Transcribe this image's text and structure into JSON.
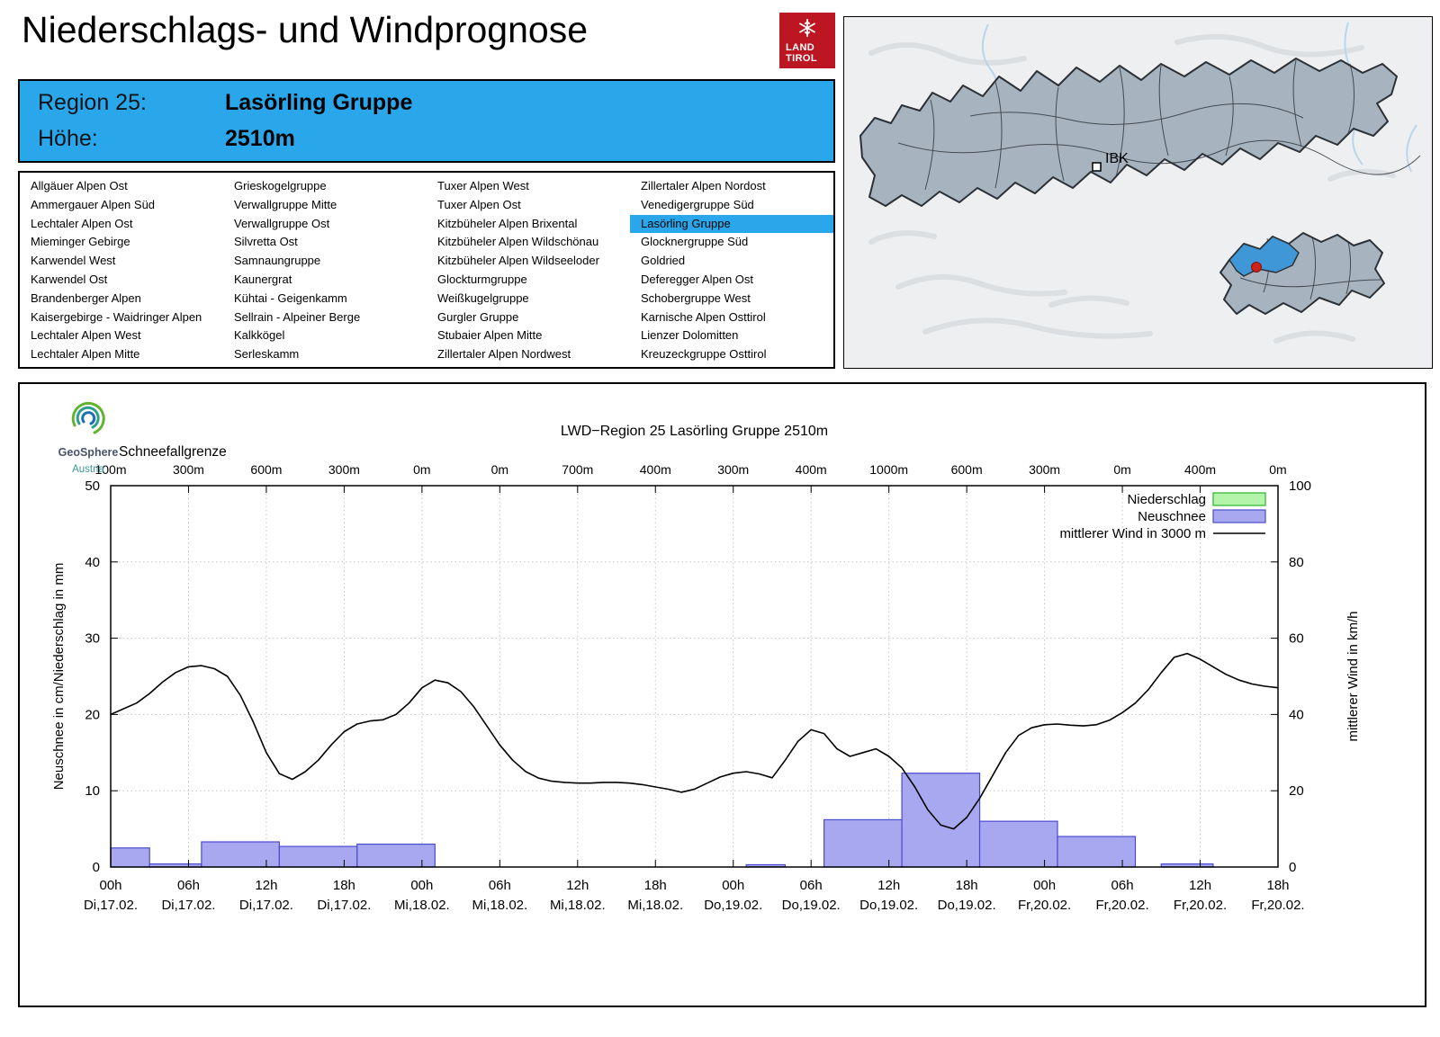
{
  "page": {
    "title": "Niederschlags- und Windprognose"
  },
  "tirol_logo": {
    "line1": "LAND",
    "line2": "TIROL"
  },
  "region_banner": {
    "region_label": "Region 25:",
    "region_value": "Lasörling Gruppe",
    "altitude_label": "Höhe:",
    "altitude_value": "2510m"
  },
  "region_list": {
    "selected": "Lasörling Gruppe",
    "columns": [
      [
        "Allgäuer Alpen Ost",
        "Ammergauer Alpen Süd",
        "Lechtaler Alpen Ost",
        "Mieminger Gebirge",
        "Karwendel West",
        "Karwendel Ost",
        "Brandenberger Alpen",
        "Kaisergebirge - Waidringer Alpen",
        "Lechtaler Alpen West",
        "Lechtaler Alpen Mitte"
      ],
      [
        "Grieskogelgruppe",
        "Verwallgruppe Mitte",
        "Verwallgruppe Ost",
        "Silvretta Ost",
        "Samnaungruppe",
        "Kaunergrat",
        "Kühtai - Geigenkamm",
        "Sellrain - Alpeiner Berge",
        "Kalkkögel",
        "Serleskamm"
      ],
      [
        "Tuxer Alpen West",
        "Tuxer Alpen Ost",
        "Kitzbüheler Alpen Brixental",
        "Kitzbüheler Alpen Wildschönau",
        "Kitzbüheler Alpen Wildseeloder",
        "Glockturmgruppe",
        "Weißkugelgruppe",
        "Gurgler Gruppe",
        "Stubaier Alpen Mitte",
        "Zillertaler Alpen Nordwest"
      ],
      [
        "Zillertaler Alpen Nordost",
        "Venedigergruppe Süd",
        "Lasörling Gruppe",
        "Glocknergruppe Süd",
        "Goldried",
        "Deferegger Alpen Ost",
        "Schobergruppe West",
        "Karnische Alpen Osttirol",
        "Lienzer Dolomitten",
        "Kreuzeckgruppe Osttirol"
      ]
    ]
  },
  "map": {
    "ibk_label": "IBK"
  },
  "geosphere_logo": {
    "line1": "GeoSphere",
    "line2": "Austria"
  },
  "colors": {
    "accent": "#2aa7eb",
    "tirol_red": "#bc1623",
    "map_fill": "#a7b3bf",
    "map_highlight": "#3f97d7",
    "marker_red": "#d02318"
  },
  "chart_data": {
    "type": "composite",
    "title": "LWD−Region 25 Lasörling Gruppe 2510m",
    "top_axis": {
      "label": "Schneefallgrenze",
      "values": [
        "100m",
        "300m",
        "600m",
        "300m",
        "0m",
        "0m",
        "700m",
        "400m",
        "300m",
        "400m",
        "1000m",
        "600m",
        "300m",
        "0m",
        "400m",
        "0m"
      ]
    },
    "x_axis": {
      "hours_range": [
        0,
        90
      ],
      "tick_step_h": 6,
      "tick_times": [
        "00h",
        "06h",
        "12h",
        "18h",
        "00h",
        "06h",
        "12h",
        "18h",
        "00h",
        "06h",
        "12h",
        "18h",
        "00h",
        "06h",
        "12h",
        "18h"
      ],
      "tick_dates": [
        "Di,17.02.",
        "Di,17.02.",
        "Di,17.02.",
        "Di,17.02.",
        "Mi,18.02.",
        "Mi,18.02.",
        "Mi,18.02.",
        "Mi,18.02.",
        "Do,19.02.",
        "Do,19.02.",
        "Do,19.02.",
        "Do,19.02.",
        "Fr,20.02.",
        "Fr,20.02.",
        "Fr,20.02.",
        "Fr,20.02."
      ]
    },
    "y_left": {
      "label": "Neuschnee in cm/Niederschlag in mm",
      "min": 0,
      "max": 50,
      "ticks": [
        0,
        10,
        20,
        30,
        40,
        50
      ]
    },
    "y_right": {
      "label": "mittlerer Wind in km/h",
      "min": 0,
      "max": 100,
      "ticks": [
        0,
        20,
        40,
        60,
        80,
        100
      ]
    },
    "legend": [
      {
        "label": "Niederschlag",
        "swatch": "box",
        "fill": "#b4f4aa",
        "stroke": "#28b428"
      },
      {
        "label": "Neuschnee",
        "swatch": "box",
        "fill": "#a8a8f0",
        "stroke": "#4a4ad0"
      },
      {
        "label": "mittlerer Wind in 3000 m",
        "swatch": "line",
        "stroke": "#000000"
      }
    ],
    "series": {
      "niederschlag_mm": {
        "type": "bar",
        "fill": "#b4f4aa",
        "stroke": "#28b428",
        "segments": []
      },
      "neuschnee_cm": {
        "type": "bar",
        "fill": "#a8a8f0",
        "stroke": "#4a4ad0",
        "segments": [
          [
            0,
            3,
            2.5
          ],
          [
            3,
            7,
            0.4
          ],
          [
            7,
            13,
            3.3
          ],
          [
            13,
            19,
            2.7
          ],
          [
            19,
            25,
            3.0
          ],
          [
            49,
            52,
            0.3
          ],
          [
            55,
            61,
            6.2
          ],
          [
            61,
            67,
            12.3
          ],
          [
            67,
            73,
            6.0
          ],
          [
            73,
            79,
            4.0
          ],
          [
            81,
            85,
            0.4
          ]
        ]
      },
      "wind_kmh_3000m": {
        "type": "line",
        "axis": "right",
        "stroke": "#000000",
        "points": [
          [
            0,
            40
          ],
          [
            1,
            41.5
          ],
          [
            2,
            43
          ],
          [
            3,
            45.5
          ],
          [
            4,
            48.5
          ],
          [
            5,
            51
          ],
          [
            6,
            52.5
          ],
          [
            7,
            52.8
          ],
          [
            8,
            52
          ],
          [
            9,
            50
          ],
          [
            10,
            45
          ],
          [
            11,
            38
          ],
          [
            12,
            30
          ],
          [
            13,
            24.5
          ],
          [
            14,
            23
          ],
          [
            15,
            25
          ],
          [
            16,
            28
          ],
          [
            17,
            32
          ],
          [
            18,
            35.5
          ],
          [
            19,
            37.5
          ],
          [
            20,
            38.3
          ],
          [
            21,
            38.6
          ],
          [
            22,
            40
          ],
          [
            23,
            43
          ],
          [
            24,
            47
          ],
          [
            25,
            49
          ],
          [
            26,
            48.3
          ],
          [
            27,
            46
          ],
          [
            28,
            42
          ],
          [
            29,
            37
          ],
          [
            30,
            32
          ],
          [
            31,
            28
          ],
          [
            32,
            25
          ],
          [
            33,
            23.3
          ],
          [
            34,
            22.5
          ],
          [
            35,
            22.2
          ],
          [
            36,
            22
          ],
          [
            37,
            22
          ],
          [
            38,
            22.2
          ],
          [
            39,
            22.2
          ],
          [
            40,
            22
          ],
          [
            41,
            21.6
          ],
          [
            42,
            21
          ],
          [
            43,
            20.4
          ],
          [
            44,
            19.6
          ],
          [
            45,
            20.4
          ],
          [
            46,
            22
          ],
          [
            47,
            23.6
          ],
          [
            48,
            24.6
          ],
          [
            49,
            25
          ],
          [
            50,
            24.4
          ],
          [
            51,
            23.4
          ],
          [
            52,
            28
          ],
          [
            53,
            33
          ],
          [
            54,
            36
          ],
          [
            55,
            35
          ],
          [
            56,
            31
          ],
          [
            57,
            29
          ],
          [
            58,
            30
          ],
          [
            59,
            31
          ],
          [
            60,
            29
          ],
          [
            61,
            26
          ],
          [
            62,
            21
          ],
          [
            63,
            15
          ],
          [
            64,
            11
          ],
          [
            65,
            10
          ],
          [
            66,
            13
          ],
          [
            67,
            18
          ],
          [
            68,
            24
          ],
          [
            69,
            30
          ],
          [
            70,
            34.5
          ],
          [
            71,
            36.5
          ],
          [
            72,
            37.3
          ],
          [
            73,
            37.5
          ],
          [
            74,
            37.2
          ],
          [
            75,
            37
          ],
          [
            76,
            37.3
          ],
          [
            77,
            38.5
          ],
          [
            78,
            40.5
          ],
          [
            79,
            43
          ],
          [
            80,
            46.5
          ],
          [
            81,
            51
          ],
          [
            82,
            55
          ],
          [
            83,
            56
          ],
          [
            84,
            54.5
          ],
          [
            85,
            52.5
          ],
          [
            86,
            50.5
          ],
          [
            87,
            49
          ],
          [
            88,
            48
          ],
          [
            89,
            47.4
          ],
          [
            90,
            47
          ]
        ]
      }
    }
  }
}
